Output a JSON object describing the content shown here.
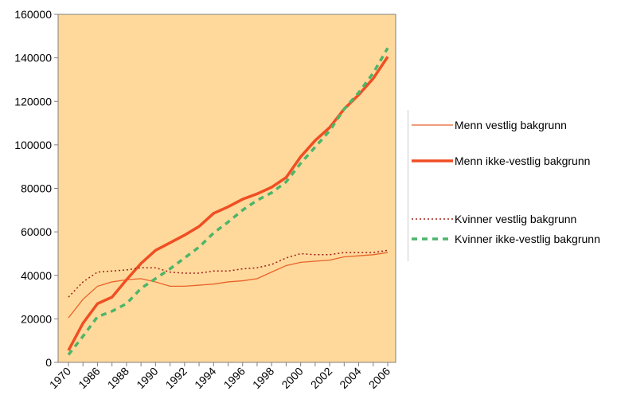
{
  "chart_data": {
    "type": "line",
    "categories": [
      "1970",
      null,
      "1986",
      null,
      "1988",
      null,
      "1990",
      null,
      "1992",
      null,
      "1994",
      null,
      "1996",
      null,
      "1998",
      null,
      "2000",
      null,
      "2002",
      null,
      "2004",
      null,
      "2006"
    ],
    "ylim": [
      0,
      160000
    ],
    "yticks": [
      0,
      20000,
      40000,
      60000,
      80000,
      100000,
      120000,
      140000,
      160000
    ],
    "grid": false,
    "legend": "right",
    "series": [
      {
        "name": "Menn vestlig bakgrunn",
        "color": "#e8622a",
        "style": "thin",
        "values": [
          20500,
          29000,
          35000,
          37000,
          38000,
          38500,
          37000,
          35000,
          35000,
          35500,
          36000,
          37000,
          37500,
          38500,
          41500,
          44500,
          46000,
          46500,
          47000,
          48500,
          49000,
          49500,
          50500
        ]
      },
      {
        "name": "Menn ikke-vestlig bakgrunn",
        "color": "#f04e23",
        "style": "thick",
        "values": [
          5500,
          18000,
          27000,
          30000,
          38000,
          45500,
          51500,
          55000,
          58500,
          62500,
          68500,
          71500,
          75000,
          77500,
          80500,
          85000,
          94500,
          102000,
          108000,
          116500,
          123000,
          130500,
          140500
        ]
      },
      {
        "name": "Kvinner vestlig bakgrunn",
        "color": "#a0201a",
        "style": "dotted",
        "values": [
          30000,
          37000,
          41500,
          42000,
          42500,
          43500,
          43500,
          41500,
          41000,
          41000,
          42000,
          42000,
          43000,
          43500,
          45000,
          48000,
          50000,
          49500,
          49500,
          50500,
          50500,
          50500,
          51500
        ]
      },
      {
        "name": "Kvinner ikke-vestlig bakgrunn",
        "color": "#4db56a",
        "style": "dashed",
        "values": [
          3500,
          12000,
          21000,
          23500,
          27000,
          34000,
          38500,
          43000,
          48000,
          53000,
          59500,
          64500,
          70000,
          74500,
          78000,
          83000,
          91500,
          99000,
          106500,
          116500,
          124000,
          133000,
          144500
        ]
      }
    ]
  }
}
